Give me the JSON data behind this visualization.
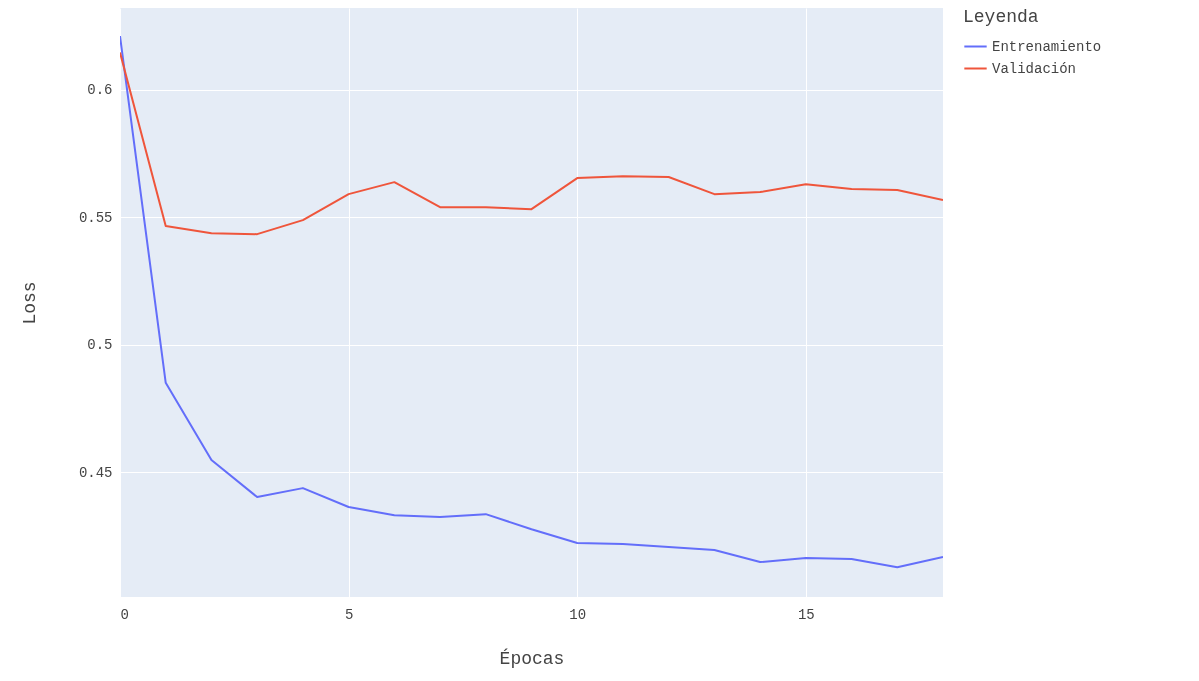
{
  "chart_data": {
    "type": "line",
    "xlabel": "Épocas",
    "ylabel": "Loss",
    "legend_title": "Leyenda",
    "legend": "top right",
    "grid": true,
    "xlim": [
      0,
      18
    ],
    "xticks": [
      0,
      5,
      10,
      15
    ],
    "ylim": [
      0.401,
      0.632
    ],
    "yticks": [
      0.45,
      0.5,
      0.55,
      0.6
    ],
    "x": [
      0,
      1,
      2,
      3,
      4,
      5,
      6,
      7,
      8,
      9,
      10,
      11,
      12,
      13,
      14,
      15,
      16,
      17,
      18
    ],
    "series": [
      {
        "name": "Entrenamiento",
        "color": "#636efa",
        "values": [
          0.621,
          0.485,
          0.4547,
          0.4402,
          0.4437,
          0.4363,
          0.4331,
          0.4324,
          0.4335,
          0.4276,
          0.4222,
          0.4218,
          0.4206,
          0.4194,
          0.4147,
          0.4163,
          0.4159,
          0.4127,
          0.4167
        ]
      },
      {
        "name": "Validación",
        "color": "#ef553b",
        "values": [
          0.6145,
          0.5465,
          0.5437,
          0.5433,
          0.5488,
          0.559,
          0.5637,
          0.5539,
          0.5539,
          0.5531,
          0.5653,
          0.566,
          0.5657,
          0.559,
          0.5598,
          0.5629,
          0.561,
          0.5606,
          0.5567
        ]
      }
    ]
  }
}
